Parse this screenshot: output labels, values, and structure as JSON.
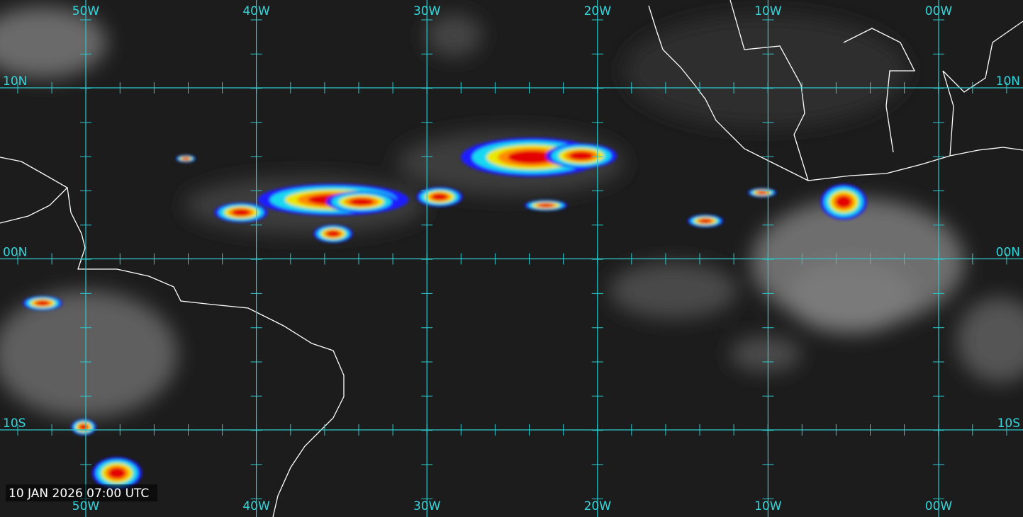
{
  "map": {
    "longitude_labels": [
      "50W",
      "40W",
      "30W",
      "20W",
      "10W",
      "00W"
    ],
    "latitude_labels": [
      "10N",
      "00N",
      "10S"
    ],
    "timestamp": "10 JAN 2026 07:00 UTC"
  }
}
